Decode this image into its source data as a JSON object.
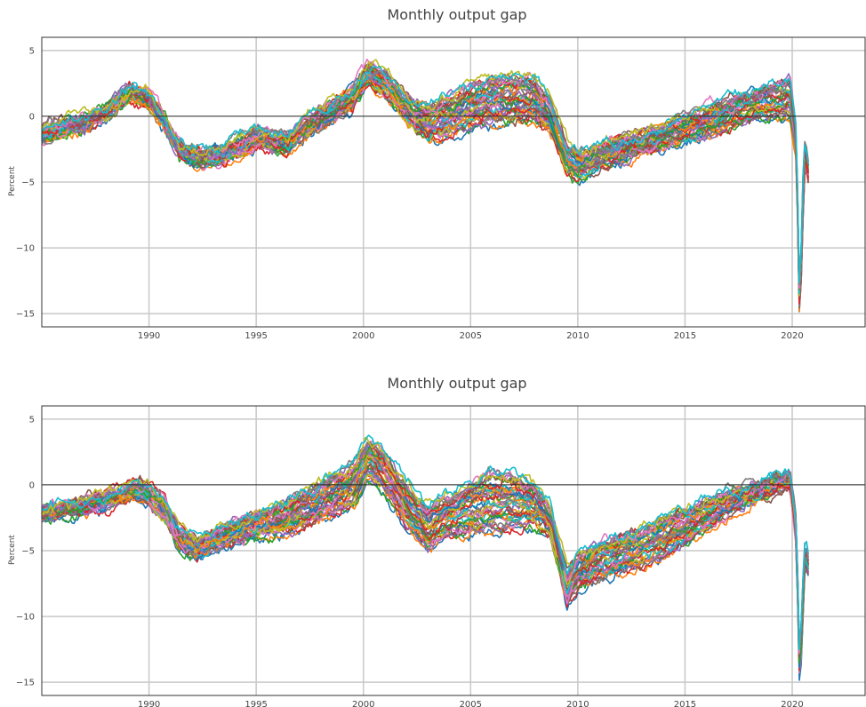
{
  "chart_data": [
    {
      "type": "line",
      "title": "Monthly output gap",
      "ylabel": "Percent",
      "xlabel": "",
      "xlim": [
        1985,
        2023.4
      ],
      "ylim": [
        -16,
        6
      ],
      "x_ticks": [
        1990,
        1995,
        2000,
        2005,
        2010,
        2015,
        2020
      ],
      "y_ticks": [
        5,
        0,
        -5,
        -10,
        -15
      ],
      "grid": true,
      "legend": "none",
      "anchors": {
        "x": [
          1985.0,
          1986.0,
          1987.0,
          1988.0,
          1989.2,
          1990.0,
          1990.7,
          1991.4,
          1992.2,
          1993.5,
          1995.0,
          1995.5,
          1996.5,
          1998.0,
          1999.5,
          2000.2,
          2001.0,
          2002.0,
          2003.0,
          2004.0,
          2005.0,
          2006.0,
          2007.0,
          2008.0,
          2008.7,
          2009.5,
          2010.0,
          2011.0,
          2012.0,
          2013.0,
          2014.0,
          2015.0,
          2016.0,
          2017.0,
          2018.0,
          2019.0,
          2019.9,
          2020.2,
          2020.35,
          2020.5,
          2020.6,
          2020.75
        ],
        "base": [
          -1.2,
          -0.6,
          -0.3,
          0.6,
          2.0,
          1.4,
          -0.2,
          -2.4,
          -3.0,
          -2.7,
          -1.5,
          -1.6,
          -1.8,
          0.2,
          1.6,
          3.4,
          2.7,
          0.9,
          -0.3,
          0.3,
          1.0,
          1.4,
          1.5,
          1.5,
          0.3,
          -3.0,
          -3.6,
          -2.9,
          -2.3,
          -1.9,
          -1.3,
          -0.6,
          -0.2,
          0.5,
          1.0,
          1.4,
          1.8,
          -2.0,
          -15.0,
          -6.0,
          -2.5,
          -4.0
        ],
        "spread": [
          0.5,
          0.5,
          0.5,
          0.4,
          0.5,
          0.5,
          0.5,
          0.5,
          0.6,
          0.6,
          0.6,
          0.6,
          0.6,
          0.6,
          0.7,
          0.7,
          0.9,
          1.0,
          1.3,
          1.4,
          1.6,
          1.8,
          1.8,
          1.6,
          1.3,
          1.0,
          1.0,
          0.9,
          0.8,
          0.8,
          0.9,
          1.0,
          1.1,
          1.1,
          1.2,
          1.3,
          1.6,
          1.0,
          0.8,
          1.5,
          1.0,
          0.5
        ]
      },
      "series_count": 40,
      "y_gap": -0.2
    },
    {
      "type": "line",
      "title": "Monthly output gap",
      "ylabel": "Percent",
      "xlabel": "",
      "xlim": [
        1985,
        2023.4
      ],
      "ylim": [
        -16,
        6
      ],
      "x_ticks": [
        1990,
        1995,
        2000,
        2005,
        2010,
        2015,
        2020
      ],
      "y_ticks": [
        5,
        0,
        -5,
        -10,
        -15
      ],
      "grid": true,
      "legend": "none",
      "anchors": {
        "x": [
          1985.0,
          1986.0,
          1987.0,
          1988.0,
          1989.2,
          1990.0,
          1990.7,
          1991.4,
          1992.2,
          1993.5,
          1995.0,
          1995.5,
          1996.5,
          1998.0,
          1999.5,
          2000.2,
          2001.0,
          2002.0,
          2003.0,
          2004.0,
          2005.0,
          2006.0,
          2007.0,
          2008.0,
          2008.7,
          2009.5,
          2010.0,
          2011.0,
          2012.0,
          2013.0,
          2014.0,
          2015.0,
          2016.0,
          2017.0,
          2018.0,
          2019.0,
          2019.9,
          2020.2,
          2020.35,
          2020.5,
          2020.6,
          2020.75
        ],
        "base": [
          -1.6,
          -1.2,
          -1.0,
          -0.6,
          0.2,
          0.0,
          -1.2,
          -3.5,
          -4.2,
          -3.2,
          -2.4,
          -2.3,
          -1.8,
          -0.6,
          0.6,
          2.6,
          1.5,
          -0.9,
          -2.6,
          -1.6,
          -1.1,
          -0.6,
          -0.6,
          -0.9,
          -2.0,
          -7.2,
          -6.0,
          -5.2,
          -4.6,
          -4.1,
          -3.3,
          -2.5,
          -1.7,
          -0.8,
          -0.1,
          0.5,
          1.0,
          -3.0,
          -14.0,
          -8.0,
          -4.5,
          -5.5
        ],
        "spread": [
          0.4,
          0.4,
          0.4,
          0.5,
          0.6,
          0.7,
          0.7,
          0.7,
          0.7,
          0.8,
          0.9,
          1.0,
          1.3,
          1.5,
          1.6,
          1.5,
          1.5,
          1.5,
          1.6,
          1.6,
          2.0,
          2.2,
          2.0,
          1.6,
          1.2,
          1.2,
          1.3,
          1.4,
          1.4,
          1.5,
          1.5,
          1.4,
          1.3,
          0.9,
          0.7,
          0.6,
          0.7,
          1.0,
          1.0,
          1.5,
          1.0,
          0.6
        ]
      },
      "series_count": 40,
      "y_gap": -0.6
    }
  ],
  "palette": [
    "#1f77b4",
    "#ff7f0e",
    "#2ca02c",
    "#d62728",
    "#9467bd",
    "#8c564b",
    "#e377c2",
    "#7f7f7f",
    "#bcbd22",
    "#17becf"
  ]
}
